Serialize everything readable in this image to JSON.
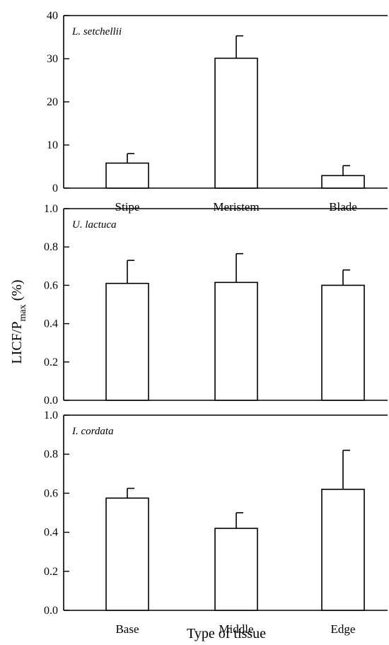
{
  "figure": {
    "ylabel_main": "LICF/P",
    "ylabel_sub": "max",
    "ylabel_unit": " (%)",
    "xlabel": "Type of tissue"
  },
  "chart_data": [
    {
      "type": "bar",
      "panel_label": "L. setchellii",
      "categories": [
        "Stipe",
        "Meristem",
        "Blade"
      ],
      "values": [
        5.8,
        30.1,
        2.9
      ],
      "errors": [
        2.2,
        5.2,
        2.3
      ],
      "ylim": [
        0,
        40
      ],
      "yticks": [
        0,
        10,
        20,
        30,
        40
      ],
      "ytick_labels": [
        "0",
        "10",
        "20",
        "30",
        "40"
      ]
    },
    {
      "type": "bar",
      "panel_label": "U. lactuca",
      "categories": [
        "",
        "",
        ""
      ],
      "values": [
        0.61,
        0.615,
        0.6
      ],
      "errors": [
        0.12,
        0.15,
        0.08
      ],
      "ylim": [
        0,
        1.0
      ],
      "yticks": [
        0,
        0.2,
        0.4,
        0.6,
        0.8,
        1.0
      ],
      "ytick_labels": [
        "0.0",
        "0.2",
        "0.4",
        "0.6",
        "0.8",
        "1.0"
      ]
    },
    {
      "type": "bar",
      "panel_label": "I. cordata",
      "categories": [
        "Base",
        "Middle",
        "Edge"
      ],
      "values": [
        0.575,
        0.42,
        0.62
      ],
      "errors": [
        0.05,
        0.08,
        0.2
      ],
      "ylim": [
        0,
        1.0
      ],
      "yticks": [
        0,
        0.2,
        0.4,
        0.6,
        0.8,
        1.0
      ],
      "ytick_labels": [
        "0.0",
        "0.2",
        "0.4",
        "0.6",
        "0.8",
        "1.0"
      ]
    }
  ]
}
